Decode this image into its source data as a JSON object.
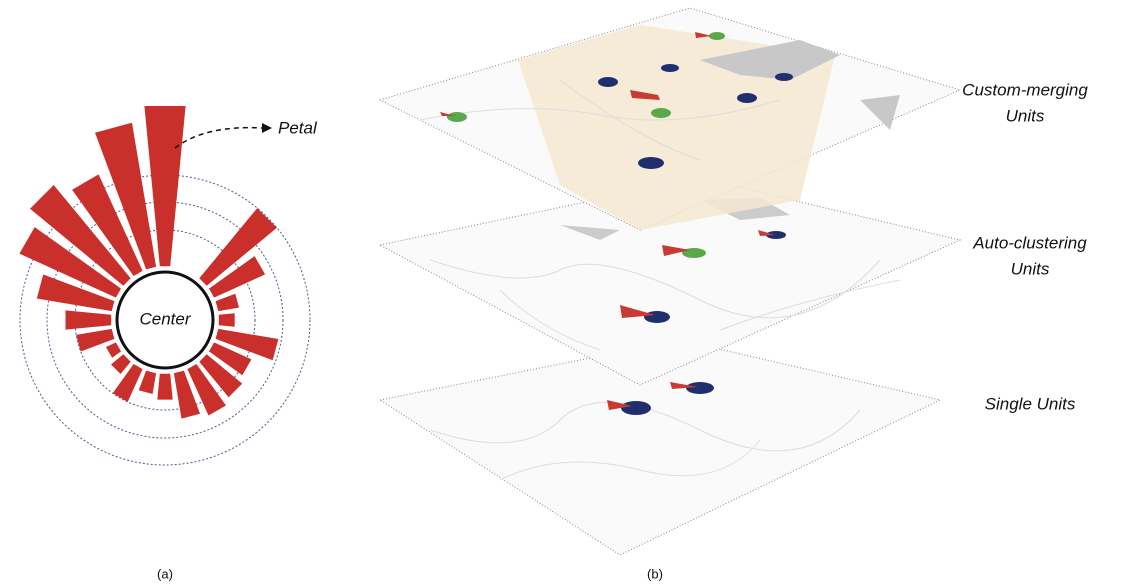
{
  "rose": {
    "petal_label": "Petal",
    "center_label": "Center",
    "caption": "(a)"
  },
  "layers": {
    "caption": "(b)",
    "items": [
      {
        "label_lines": [
          "Custom-merging",
          "Units"
        ]
      },
      {
        "label_lines": [
          "Auto-clustering",
          "Units"
        ]
      },
      {
        "label_lines": [
          "Single Units"
        ]
      }
    ]
  }
}
